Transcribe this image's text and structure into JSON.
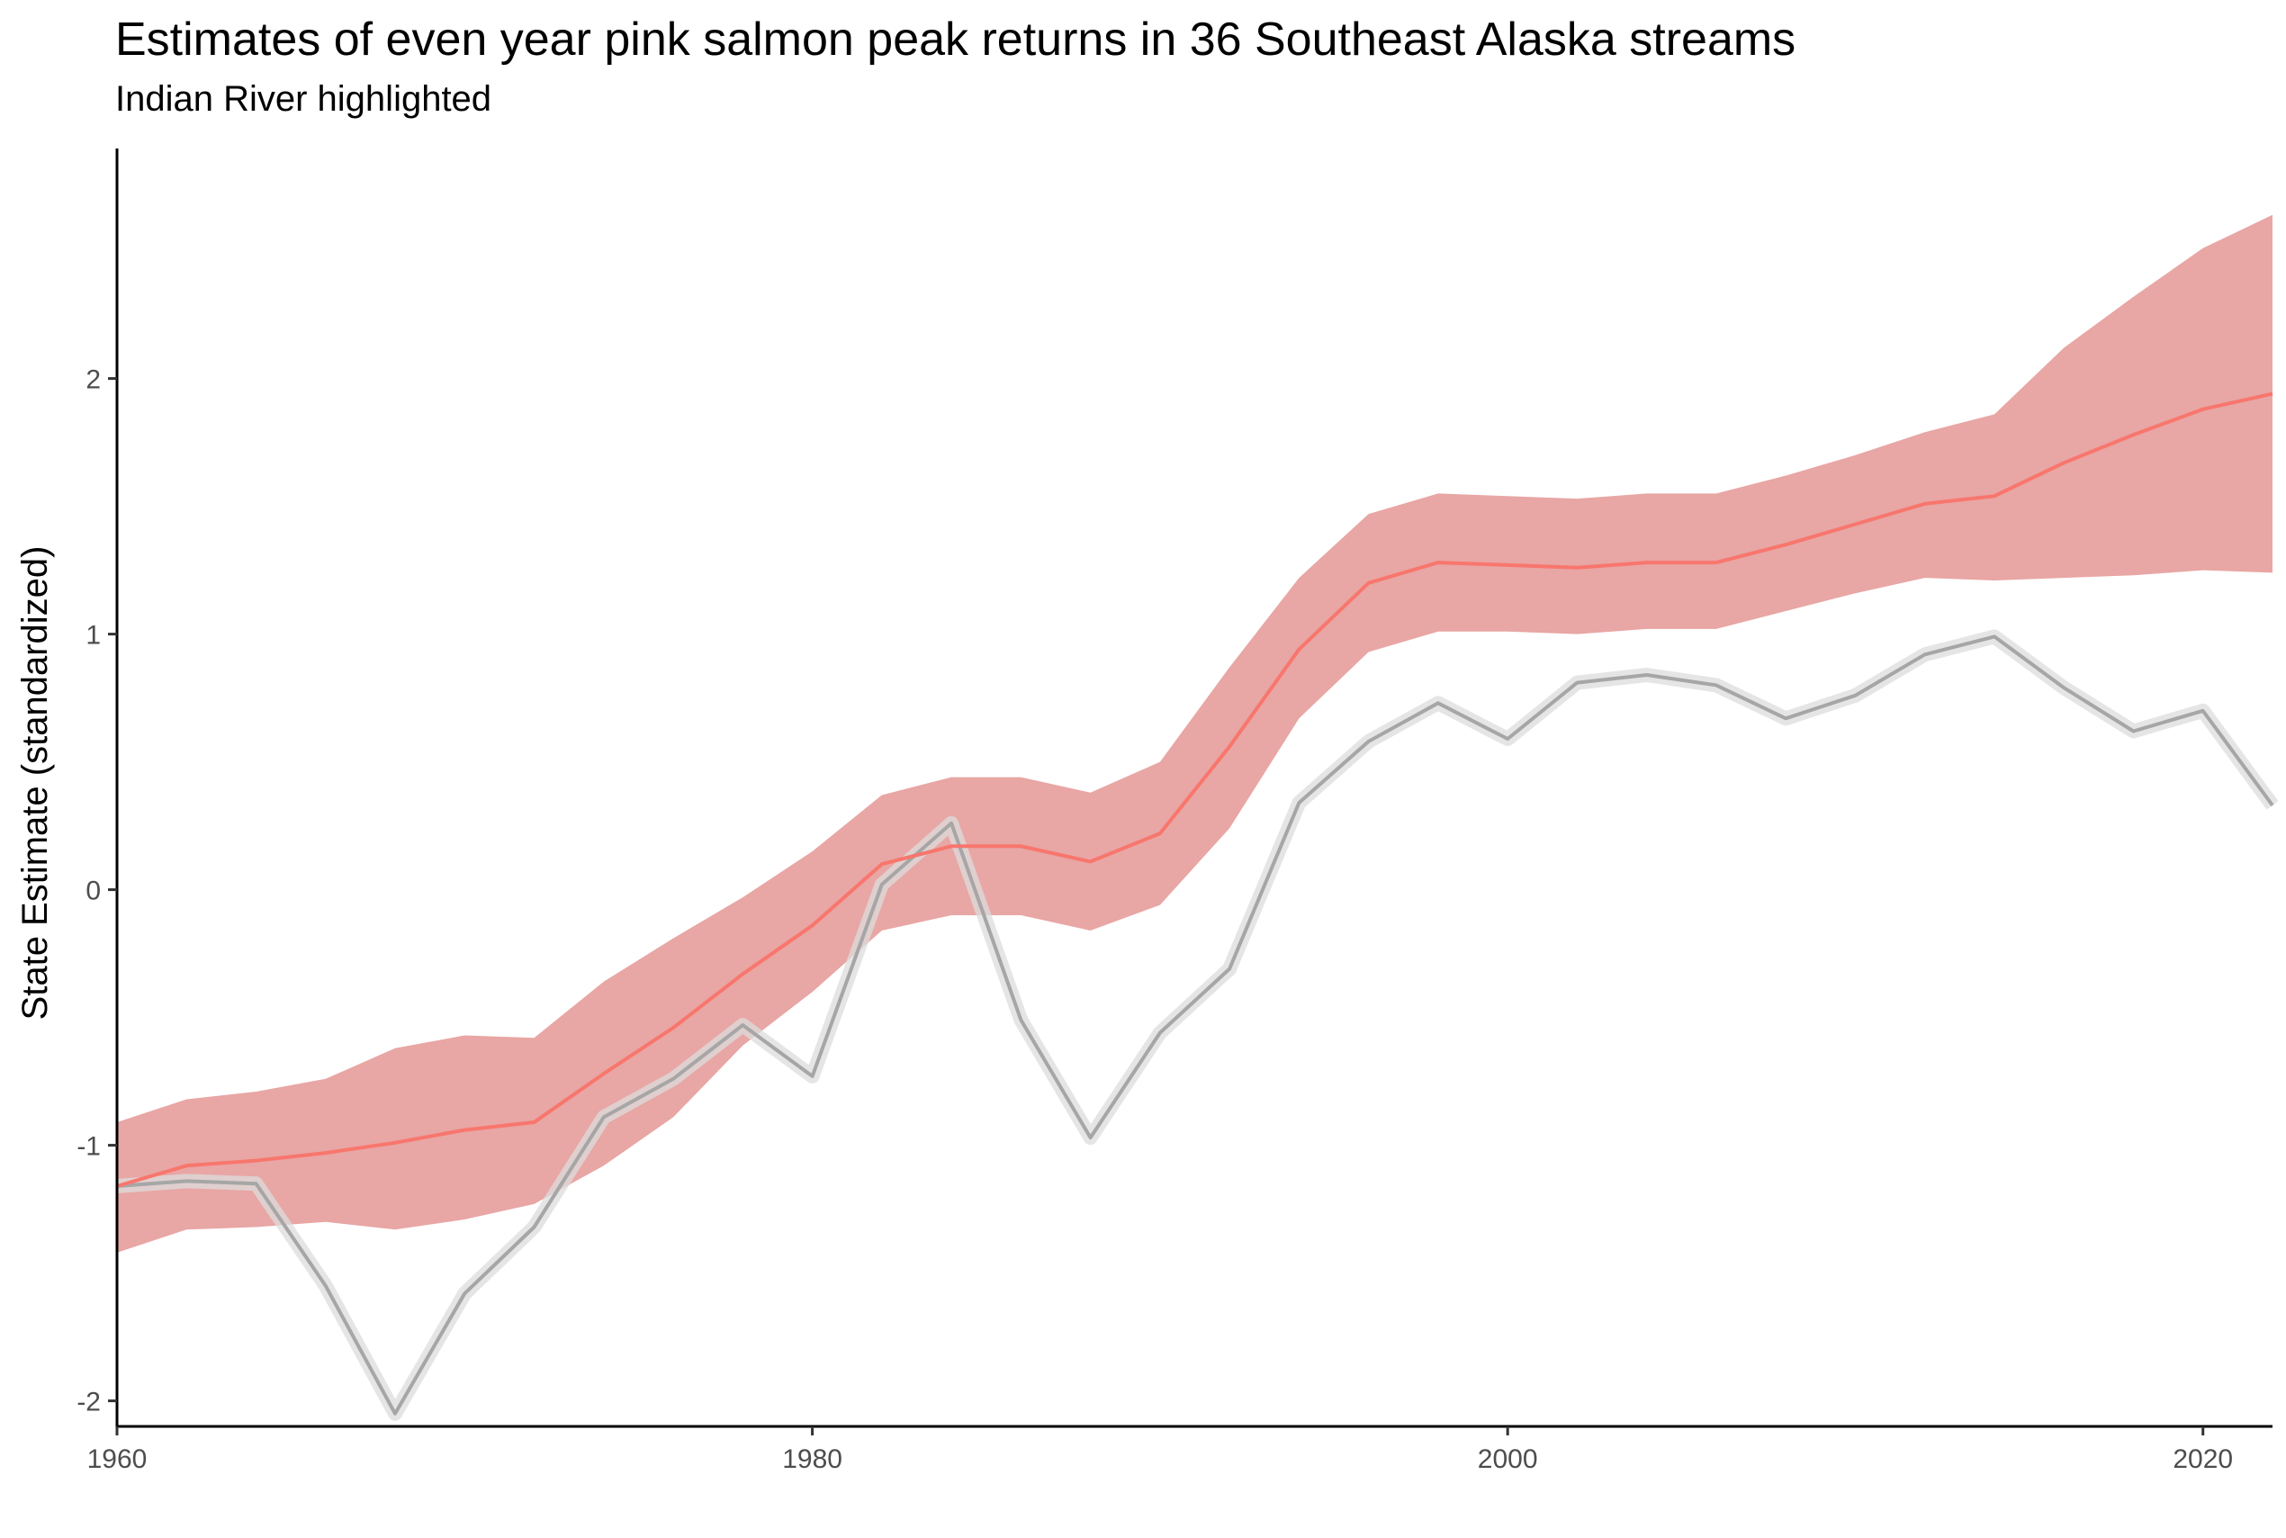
{
  "chart_data": {
    "type": "line",
    "title": "Estimates of even year pink salmon peak returns in 36 Southeast Alaska streams",
    "subtitle": "Indian River highlighted",
    "xlabel": "",
    "ylabel": "State Estimate (standardized)",
    "xlim": [
      1960,
      2022
    ],
    "ylim": [
      -2.1,
      2.9
    ],
    "x_ticks": [
      1960,
      1980,
      2000,
      2020
    ],
    "y_ticks": [
      -2,
      -1,
      0,
      1,
      2
    ],
    "grid": false,
    "legend": "none",
    "x": [
      1960,
      1962,
      1964,
      1966,
      1968,
      1970,
      1972,
      1974,
      1976,
      1978,
      1980,
      1982,
      1984,
      1986,
      1988,
      1990,
      1992,
      1994,
      1996,
      1998,
      2000,
      2002,
      2004,
      2006,
      2008,
      2010,
      2012,
      2014,
      2016,
      2018,
      2020,
      2022
    ],
    "series": [
      {
        "role": "state estimate",
        "color": "#f8766d",
        "ribbon_color": "#e8a6a4",
        "values": [
          -1.16,
          -1.08,
          -1.06,
          -1.03,
          -0.99,
          -0.94,
          -0.91,
          -0.72,
          -0.54,
          -0.33,
          -0.14,
          0.1,
          0.17,
          0.17,
          0.11,
          0.22,
          0.56,
          0.94,
          1.2,
          1.28,
          1.27,
          1.26,
          1.28,
          1.28,
          1.35,
          1.43,
          1.51,
          1.54,
          1.67,
          1.78,
          1.88,
          1.94
        ],
        "lower": [
          -1.42,
          -1.33,
          -1.32,
          -1.3,
          -1.33,
          -1.29,
          -1.23,
          -1.08,
          -0.89,
          -0.61,
          -0.4,
          -0.16,
          -0.1,
          -0.1,
          -0.16,
          -0.06,
          0.24,
          0.67,
          0.93,
          1.01,
          1.01,
          1.0,
          1.02,
          1.02,
          1.09,
          1.16,
          1.22,
          1.21,
          1.22,
          1.23,
          1.25,
          1.24
        ],
        "upper": [
          -0.91,
          -0.82,
          -0.79,
          -0.74,
          -0.62,
          -0.57,
          -0.58,
          -0.36,
          -0.19,
          -0.03,
          0.15,
          0.37,
          0.44,
          0.44,
          0.38,
          0.5,
          0.87,
          1.22,
          1.47,
          1.55,
          1.54,
          1.53,
          1.55,
          1.55,
          1.62,
          1.7,
          1.79,
          1.86,
          2.12,
          2.32,
          2.51,
          2.64
        ]
      },
      {
        "role": "observed",
        "color": "#a6a6a6",
        "values": [
          -1.16,
          -1.14,
          -1.15,
          -1.55,
          -2.05,
          -1.58,
          -1.32,
          -0.89,
          -0.74,
          -0.53,
          -0.73,
          0.02,
          0.26,
          -0.51,
          -0.97,
          -0.56,
          -0.31,
          0.34,
          0.58,
          0.73,
          0.59,
          0.81,
          0.84,
          0.8,
          0.67,
          0.76,
          0.92,
          0.99,
          0.79,
          0.62,
          0.7,
          0.33
        ]
      }
    ]
  }
}
